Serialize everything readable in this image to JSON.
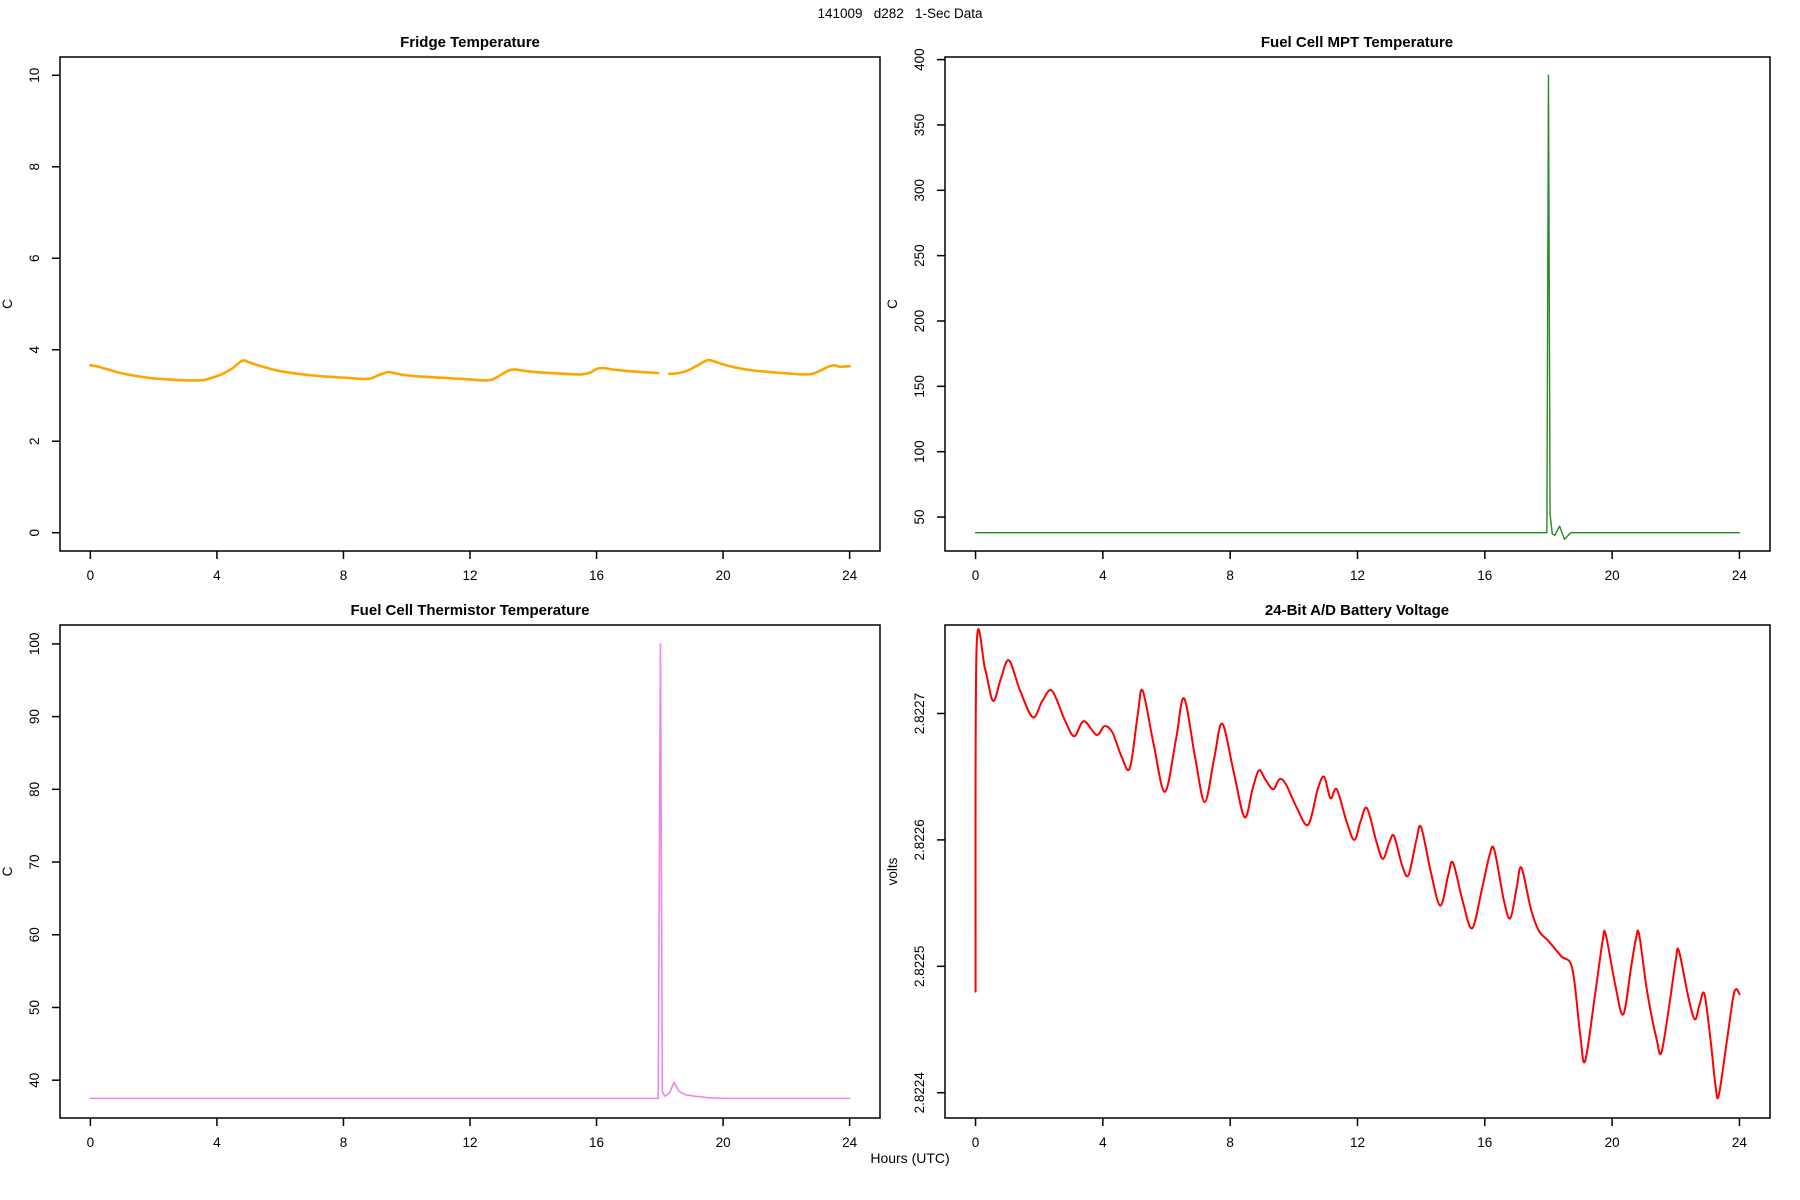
{
  "page": {
    "title": "141009   d282   1-Sec Data",
    "xlabel": "Hours (UTC)",
    "background": "#FFFFFF",
    "axis_color": "#000000"
  },
  "chart_data": [
    {
      "id": "fridge-temperature",
      "type": "line",
      "title": "Fridge Temperature",
      "ylabel": "C",
      "color": "#FFA500",
      "line_width": 2.6,
      "smooth": true,
      "grid": false,
      "xlim": [
        -0.96,
        24.96
      ],
      "ylim": [
        -0.4,
        10.4
      ],
      "xticks": [
        0,
        4,
        8,
        12,
        16,
        20,
        24
      ],
      "yticks": [
        0,
        2,
        4,
        6,
        8,
        10
      ],
      "ytick_labels": [
        "0",
        "2",
        "4",
        "6",
        "8",
        "10"
      ],
      "x": [
        0,
        0.2,
        0.5,
        0.8,
        1.1,
        1.5,
        1.9,
        2.3,
        2.7,
        3.1,
        3.4,
        3.6,
        3.9,
        4.2,
        4.5,
        4.8,
        5.0,
        5.3,
        5.7,
        6.1,
        6.5,
        7.0,
        7.5,
        8.0,
        8.4,
        8.7,
        8.9,
        9.1,
        9.4,
        9.6,
        9.9,
        10.3,
        10.8,
        11.3,
        11.8,
        12.2,
        12.5,
        12.7,
        12.9,
        13.2,
        13.4,
        13.7,
        14.1,
        14.6,
        15.1,
        15.5,
        15.8,
        16.0,
        16.2,
        16.5,
        16.9,
        17.3,
        17.7,
        17.95,
        18.1,
        18.3,
        18.6,
        18.9,
        19.2,
        19.5,
        19.7,
        20.0,
        20.4,
        20.8,
        21.2,
        21.7,
        22.1,
        22.5,
        22.8,
        23.0,
        23.3,
        23.5,
        23.7,
        24.0
      ],
      "y": [
        3.66,
        3.64,
        3.58,
        3.52,
        3.47,
        3.42,
        3.38,
        3.36,
        3.34,
        3.33,
        3.33,
        3.34,
        3.4,
        3.48,
        3.6,
        3.76,
        3.73,
        3.66,
        3.58,
        3.52,
        3.48,
        3.44,
        3.41,
        3.39,
        3.37,
        3.36,
        3.38,
        3.44,
        3.51,
        3.49,
        3.45,
        3.42,
        3.4,
        3.38,
        3.36,
        3.34,
        3.33,
        3.35,
        3.42,
        3.54,
        3.57,
        3.54,
        3.51,
        3.49,
        3.47,
        3.46,
        3.5,
        3.58,
        3.6,
        3.57,
        3.54,
        3.52,
        3.5,
        3.49,
        null,
        3.47,
        3.49,
        3.55,
        3.66,
        3.77,
        3.75,
        3.68,
        3.61,
        3.56,
        3.53,
        3.5,
        3.48,
        3.46,
        3.47,
        3.52,
        3.62,
        3.66,
        3.63,
        3.64
      ]
    },
    {
      "id": "fuel-cell-mpt-temperature",
      "type": "line",
      "title": "Fuel Cell MPT Temperature",
      "ylabel": "C",
      "color": "#228B22",
      "line_width": 1.4,
      "smooth": false,
      "grid": false,
      "xlim": [
        -0.96,
        24.96
      ],
      "ylim": [
        24,
        402
      ],
      "xticks": [
        0,
        4,
        8,
        12,
        16,
        20,
        24
      ],
      "yticks": [
        50,
        100,
        150,
        200,
        250,
        300,
        350,
        400
      ],
      "ytick_labels": [
        "50",
        "100",
        "150",
        "200",
        "250",
        "300",
        "350",
        "400"
      ],
      "x": [
        0,
        2,
        4,
        6,
        8,
        10,
        12,
        14,
        16,
        17.5,
        17.95,
        18.0,
        18.05,
        18.12,
        18.2,
        18.35,
        18.5,
        18.7,
        19,
        20,
        21,
        22,
        23,
        24
      ],
      "y": [
        38,
        38,
        38,
        38,
        38,
        38,
        38,
        38,
        38,
        38,
        38,
        388,
        52,
        37,
        36,
        43,
        33,
        38,
        38,
        38,
        38,
        38,
        38,
        38
      ]
    },
    {
      "id": "fuel-cell-thermistor-temperature",
      "type": "line",
      "title": "Fuel Cell Thermistor Temperature",
      "ylabel": "C",
      "color": "#EE82EE",
      "line_width": 1.6,
      "smooth": false,
      "grid": false,
      "xlim": [
        -0.96,
        24.96
      ],
      "ylim": [
        34.8,
        102.6
      ],
      "xticks": [
        0,
        4,
        8,
        12,
        16,
        20,
        24
      ],
      "yticks": [
        40,
        50,
        60,
        70,
        80,
        90,
        100
      ],
      "ytick_labels": [
        "40",
        "50",
        "60",
        "70",
        "80",
        "90",
        "100"
      ],
      "x": [
        0,
        2,
        4,
        6,
        8,
        10,
        12,
        14,
        16,
        17.5,
        17.95,
        18.02,
        18.08,
        18.15,
        18.3,
        18.45,
        18.6,
        18.8,
        19.1,
        19.5,
        20,
        21,
        22,
        23,
        24
      ],
      "y": [
        37.5,
        37.5,
        37.5,
        37.5,
        37.5,
        37.5,
        37.5,
        37.5,
        37.5,
        37.5,
        37.5,
        100,
        38.5,
        37.8,
        38.2,
        39.7,
        38.5,
        38.0,
        37.8,
        37.6,
        37.5,
        37.5,
        37.5,
        37.5,
        37.5
      ]
    },
    {
      "id": "battery-voltage",
      "type": "line",
      "title": "24-Bit A/D Battery Voltage",
      "ylabel": "volts",
      "color": "#FF0000",
      "line_width": 2.0,
      "smooth": true,
      "grid": false,
      "xlim": [
        -0.96,
        24.96
      ],
      "ylim": [
        2.82238,
        2.82277
      ],
      "xticks": [
        0,
        4,
        8,
        12,
        16,
        20,
        24
      ],
      "yticks": [
        2.8224,
        2.8225,
        2.8226,
        2.8227
      ],
      "ytick_labels": [
        "2.8224",
        "2.8225",
        "2.8226",
        "2.8227"
      ],
      "x": [
        0,
        0.03,
        0.3,
        0.55,
        0.8,
        1.05,
        1.4,
        1.8,
        2.1,
        2.4,
        2.8,
        3.1,
        3.4,
        3.8,
        4.05,
        4.3,
        4.6,
        4.85,
        5.1,
        5.25,
        5.6,
        5.95,
        6.3,
        6.55,
        6.9,
        7.2,
        7.5,
        7.75,
        8.1,
        8.45,
        8.7,
        8.9,
        9.1,
        9.35,
        9.55,
        9.75,
        10.1,
        10.45,
        10.75,
        10.95,
        11.15,
        11.35,
        11.65,
        11.9,
        12.1,
        12.3,
        12.6,
        12.8,
        13.0,
        13.15,
        13.4,
        13.6,
        13.85,
        14.0,
        14.3,
        14.6,
        14.85,
        15.0,
        15.3,
        15.6,
        15.9,
        16.15,
        16.3,
        16.6,
        16.8,
        17.0,
        17.15,
        17.45,
        17.7,
        18.0,
        18.4,
        18.75,
        19.0,
        19.15,
        19.45,
        19.7,
        19.8,
        20.1,
        20.35,
        20.6,
        20.75,
        20.85,
        21.1,
        21.4,
        21.55,
        21.8,
        22.0,
        22.1,
        22.4,
        22.6,
        22.75,
        22.9,
        23.1,
        23.25,
        23.35,
        23.6,
        23.8,
        23.9,
        24.0
      ],
      "y": [
        2.82248,
        2.82275,
        2.822735,
        2.82271,
        2.822728,
        2.822742,
        2.822718,
        2.822697,
        2.82271,
        2.822718,
        2.822695,
        2.822682,
        2.822694,
        2.822683,
        2.82269,
        2.822685,
        2.822665,
        2.822657,
        2.8227,
        2.822718,
        2.822675,
        2.822638,
        2.82268,
        2.822712,
        2.822665,
        2.82263,
        2.822665,
        2.822692,
        2.822655,
        2.822618,
        2.82264,
        2.822655,
        2.822648,
        2.82264,
        2.822648,
        2.822644,
        2.822625,
        2.822612,
        2.82264,
        2.82265,
        2.822633,
        2.82264,
        2.822615,
        2.8226,
        2.822615,
        2.822625,
        2.822598,
        2.822585,
        2.822598,
        2.822603,
        2.82258,
        2.822572,
        2.8226,
        2.82261,
        2.822575,
        2.822548,
        2.822572,
        2.822582,
        2.822552,
        2.82253,
        2.82256,
        2.822588,
        2.822592,
        2.822552,
        2.822538,
        2.822562,
        2.822578,
        2.822545,
        2.822528,
        2.82252,
        2.822508,
        2.822498,
        2.822445,
        2.822425,
        2.822475,
        2.82252,
        2.822525,
        2.822485,
        2.822462,
        2.8225,
        2.822522,
        2.822525,
        2.82248,
        2.822442,
        2.822432,
        2.82247,
        2.822505,
        2.822512,
        2.822475,
        2.822458,
        2.82247,
        2.822478,
        2.82244,
        2.822405,
        2.822398,
        2.82244,
        2.822475,
        2.822482,
        2.822478
      ]
    }
  ]
}
